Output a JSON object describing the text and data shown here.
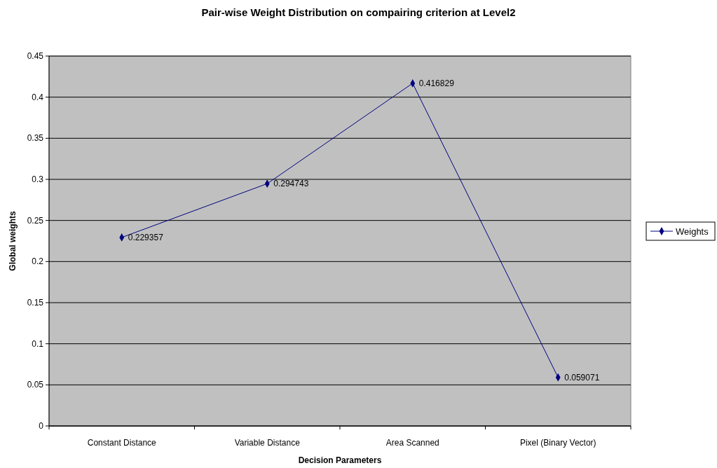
{
  "chart_data": {
    "type": "line",
    "title": "Pair-wise Weight Distribution on compairing criterion at Level2",
    "xlabel": "Decision Parameters",
    "ylabel": "Global weights",
    "categories": [
      "Constant Distance",
      "Variable Distance",
      "Area Scanned",
      "Pixel (Binary Vector)"
    ],
    "series": [
      {
        "name": "Weights",
        "color": "#000080",
        "values": [
          0.229357,
          0.294743,
          0.416829,
          0.059071
        ]
      }
    ],
    "ylim": [
      0,
      0.45
    ],
    "yticks": [
      0,
      0.05,
      0.1,
      0.15,
      0.2,
      0.25,
      0.3,
      0.35,
      0.4,
      0.45
    ],
    "grid": "y",
    "legend": "right",
    "marker": "diamond",
    "data_labels": true
  }
}
